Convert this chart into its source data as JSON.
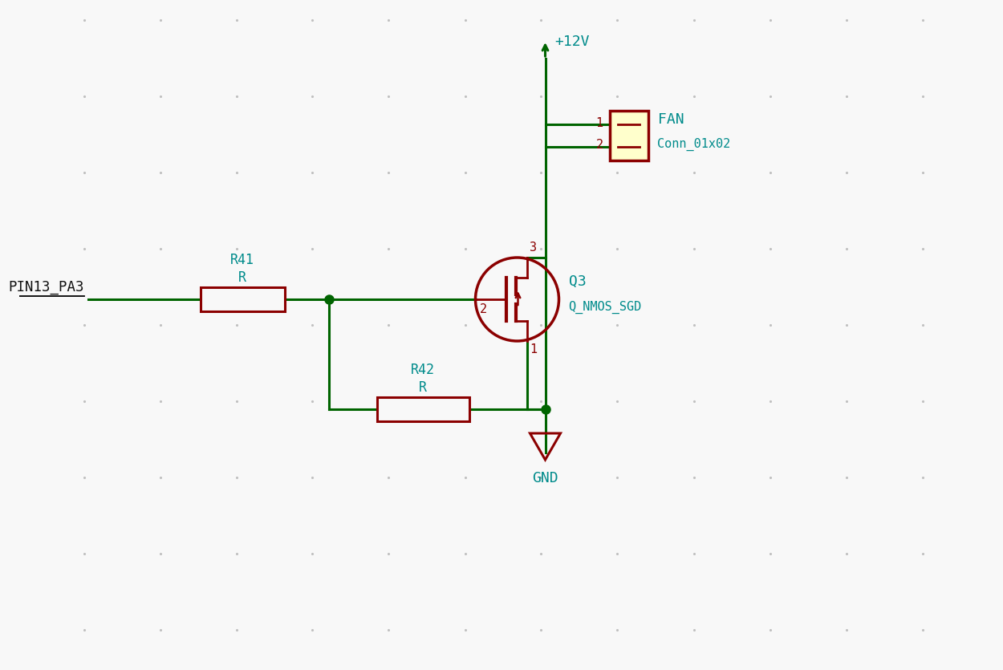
{
  "bg_color": "#f8f8f8",
  "wire_color": "#006400",
  "component_color": "#8B0000",
  "text_color_cyan": "#008B8B",
  "text_color_dark": "#111111",
  "dot_color": "#006400",
  "connector_fill": "#ffffcc",
  "dot_grid_color": "#c8c8c8",
  "figsize": [
    12.16,
    8.15
  ],
  "dpi": 100,
  "power_label": "+12V",
  "gnd_label": "GND",
  "fan_label1": "FAN",
  "fan_label2": "Conn_01x02",
  "r41_label1": "R41",
  "r41_label2": "R",
  "r42_label1": "R42",
  "r42_label2": "R",
  "q3_label1": "Q3",
  "q3_label2": "Q_NMOS_SGD",
  "pin13_label": "PIN13_PA3",
  "pin1_label": "1",
  "pin2_label": "2",
  "pin3_label": "3",
  "pin2g_label": "2",
  "pin1s_label": "1"
}
